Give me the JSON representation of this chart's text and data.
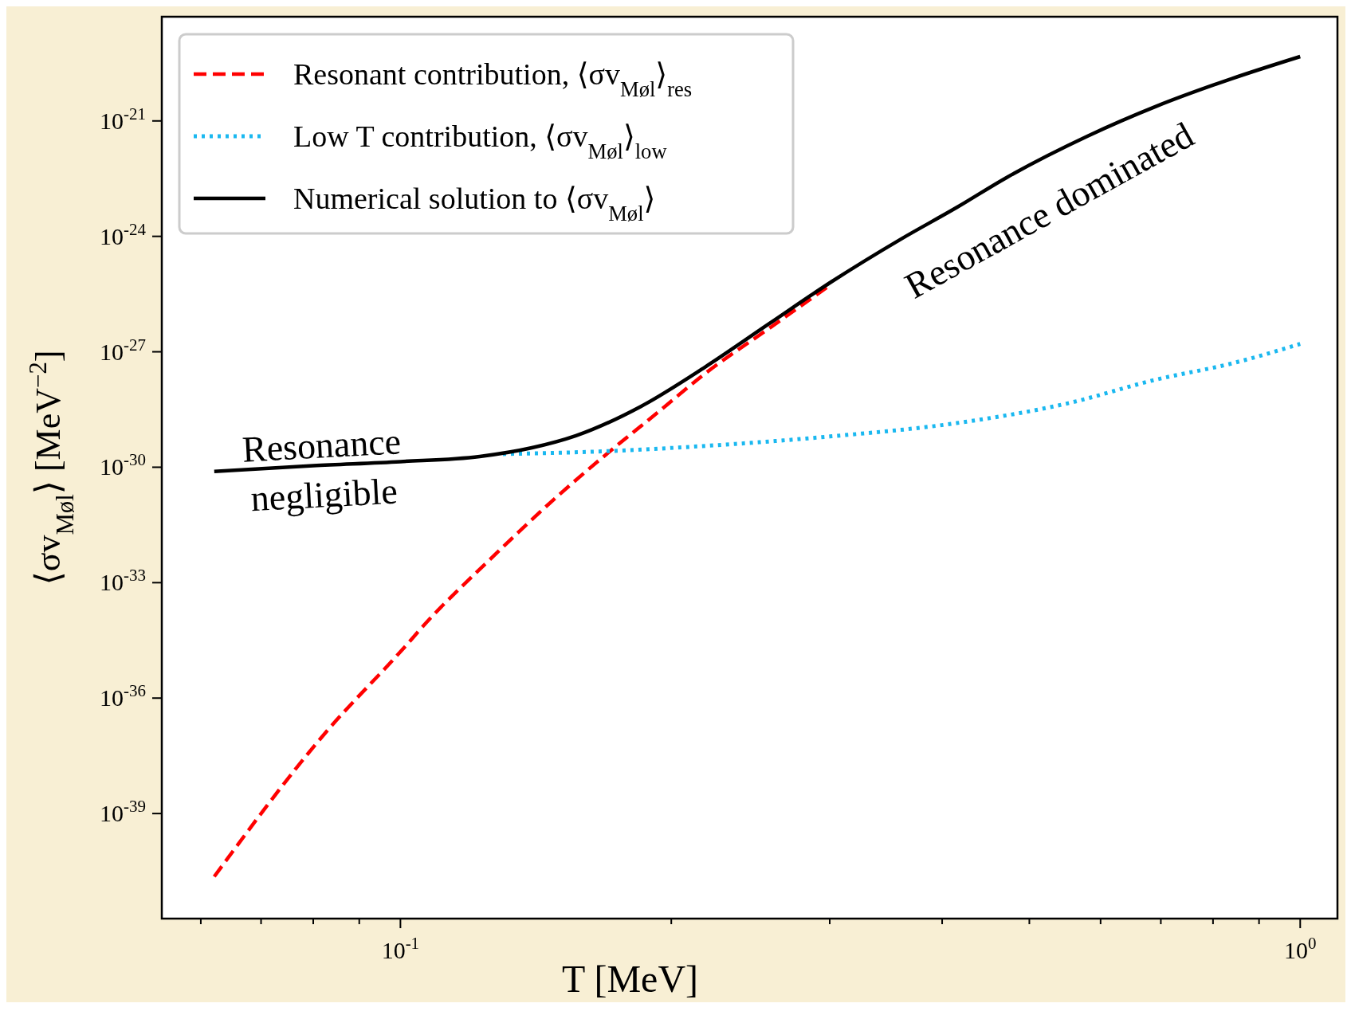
{
  "chart_data": {
    "type": "line",
    "xlabel": "T [MeV]",
    "ylabel": "⟨σv$_{Møl}$⟩ [MeV$^{−2}$]",
    "log": "xy",
    "xlim": [
      0.0543,
      1.1
    ],
    "ylim": [
      1.86e-42,
      5.1e-19
    ],
    "xticks": [
      {
        "value": 0.06,
        "label": null
      },
      {
        "value": 0.07,
        "label": null
      },
      {
        "value": 0.08,
        "label": null
      },
      {
        "value": 0.09,
        "label": null
      },
      {
        "value": 0.1,
        "label": "10$^{-1}$"
      },
      {
        "value": 0.2,
        "label": null
      },
      {
        "value": 0.3,
        "label": null
      },
      {
        "value": 0.4,
        "label": null
      },
      {
        "value": 0.5,
        "label": null
      },
      {
        "value": 0.6,
        "label": null
      },
      {
        "value": 0.7,
        "label": null
      },
      {
        "value": 0.8,
        "label": null
      },
      {
        "value": 0.9,
        "label": null
      },
      {
        "value": 1,
        "label": "10$^{0}$"
      }
    ],
    "yticks": [
      {
        "value": 1e-39,
        "label": "10$^{-39}$"
      },
      {
        "value": 1e-36,
        "label": "10$^{-36}$"
      },
      {
        "value": 1e-33,
        "label": "10$^{-33}$"
      },
      {
        "value": 1e-30,
        "label": "10$^{-30}$"
      },
      {
        "value": 1e-27,
        "label": "10$^{-27}$"
      },
      {
        "value": 1e-24,
        "label": "10$^{-24}$"
      },
      {
        "value": 1e-21,
        "label": "10$^{-21}$"
      }
    ],
    "grid": false,
    "legend": "top left",
    "series": [
      {
        "name": "Resonant contribution, ⟨σv$_{Møl}$⟩$_{res}$",
        "color": "#ff0000",
        "line_style": "dashed",
        "x": [
          0.0621,
          0.0824,
          0.1,
          0.108,
          0.1245,
          0.15,
          0.1706,
          0.193,
          0.218,
          0.257,
          0.301
        ],
        "values": [
          2.3e-41,
          1.2e-37,
          1.6e-35,
          1.2e-34,
          3.2e-33,
          1.9e-31,
          2.5e-30,
          2.6e-29,
          2.7e-28,
          4.1e-27,
          5.6e-26
        ]
      },
      {
        "name": "Low T contribution, ⟨σv$_{Møl}$⟩$_{low}$",
        "color": "#1ab8f0",
        "line_style": "dotted",
        "x": [
          0.13,
          0.1686,
          0.219,
          0.3,
          0.415,
          0.55,
          0.692,
          0.84,
          1.0
        ],
        "values": [
          2.2e-30,
          2.6e-30,
          3.6e-30,
          6.3e-30,
          1.4e-29,
          4.5e-29,
          1.9e-28,
          5e-28,
          1.6e-27
        ]
      },
      {
        "name": "Numerical solution to ⟨σv$_{Møl}$⟩",
        "color": "#000000",
        "line_style": "solid",
        "x": [
          0.0621,
          0.08,
          0.1,
          0.1225,
          0.14,
          0.1567,
          0.185,
          0.218,
          0.257,
          0.301,
          0.36,
          0.415,
          0.472,
          0.58,
          0.692,
          0.84,
          1.0
        ],
        "values": [
          7.8e-31,
          1.1e-30,
          1.4e-30,
          1.9e-30,
          3.2e-30,
          6.6e-30,
          3.8e-29,
          4e-28,
          5.4e-27,
          6.5e-26,
          8.5e-25,
          5.6e-24,
          3.4e-23,
          4e-22,
          2.4e-21,
          1.26e-20,
          4.7e-20
        ]
      }
    ],
    "annotations": [
      "Resonance\nnegligible",
      "Resonance dominated"
    ]
  }
}
